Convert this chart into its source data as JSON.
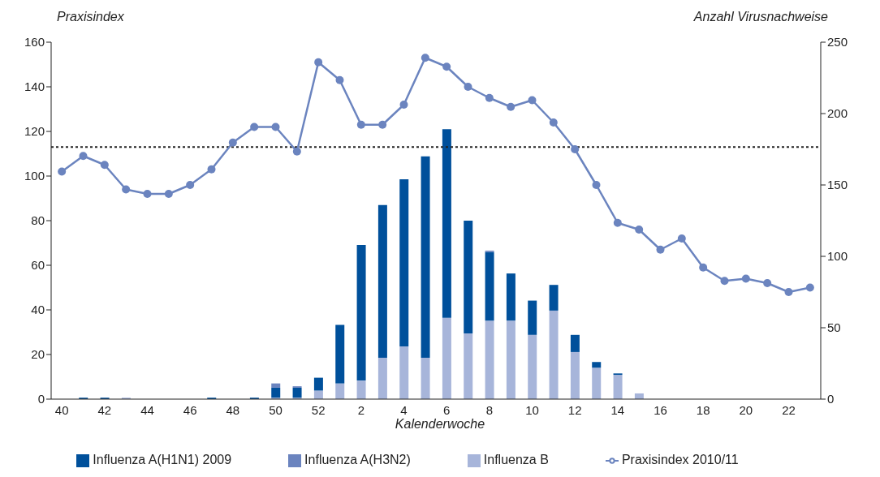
{
  "chart_data": {
    "type": "bar",
    "ylabel": "Praxisindex",
    "y2label": "Anzahl Virusnachweise",
    "xlabel": "Kalenderwoche",
    "categories": [
      "40",
      null,
      "42",
      null,
      "44",
      null,
      "46",
      null,
      "48",
      null,
      "50",
      null,
      "52",
      null,
      "2",
      null,
      "4",
      null,
      "6",
      null,
      "8",
      null,
      "10",
      null,
      "12",
      null,
      "14",
      null,
      "16",
      null,
      "18",
      null,
      "20",
      null,
      "22",
      null
    ],
    "stacked": true,
    "series": [
      {
        "name": "Influenza B",
        "axis": "y2",
        "color": "#a7b5da",
        "values": [
          0,
          0,
          0,
          1,
          0,
          0,
          0,
          0,
          0,
          0,
          1,
          1,
          6,
          11,
          13,
          29,
          37,
          29,
          57,
          46,
          55,
          55,
          45,
          62,
          33,
          22,
          17,
          4,
          0,
          0,
          0,
          0,
          0,
          0,
          0,
          0
        ]
      },
      {
        "name": "Influenza A(H1N1) 2009",
        "axis": "y2",
        "color": "#00509b",
        "values": [
          0,
          1,
          1,
          0,
          0,
          0,
          0,
          1,
          0,
          1,
          7,
          7,
          9,
          41,
          95,
          107,
          117,
          141,
          132,
          79,
          48,
          33,
          24,
          18,
          12,
          4,
          1,
          0,
          0,
          0,
          0,
          0,
          0,
          0,
          0,
          0
        ]
      },
      {
        "name": "Influenza A(H3N2)",
        "axis": "y2",
        "color": "#6b84bf",
        "values": [
          0,
          0,
          0,
          0,
          0,
          0,
          0,
          0,
          0,
          0,
          3,
          1,
          0,
          0,
          0,
          0,
          0,
          0,
          0,
          0,
          1,
          0,
          0,
          0,
          0,
          0,
          0,
          0,
          0,
          0,
          0,
          0,
          0,
          0,
          0,
          0
        ]
      },
      {
        "name": "Praxisindex 2010/11",
        "type": "line",
        "color": "#6b84bf",
        "values": [
          102,
          109,
          105,
          94,
          92,
          92,
          96,
          103,
          115,
          122,
          122,
          111,
          151,
          143,
          123,
          123,
          132,
          153,
          149,
          140,
          135,
          131,
          134,
          124,
          112,
          96,
          79,
          76,
          67,
          72,
          59,
          53,
          54,
          52,
          48,
          50
        ]
      }
    ],
    "ylim": [
      0,
      160
    ],
    "yticks": [
      0,
      20,
      40,
      60,
      80,
      100,
      120,
      140,
      160
    ],
    "y2lim": [
      0,
      250
    ],
    "y2ticks": [
      0,
      50,
      100,
      150,
      200,
      250
    ],
    "ref_lines": [
      {
        "axis": "y",
        "value": 113,
        "color": "#222222",
        "line_style": "dotted"
      }
    ],
    "legend": "bottom",
    "marker": "circle",
    "line_style": "solid",
    "grid": false
  }
}
